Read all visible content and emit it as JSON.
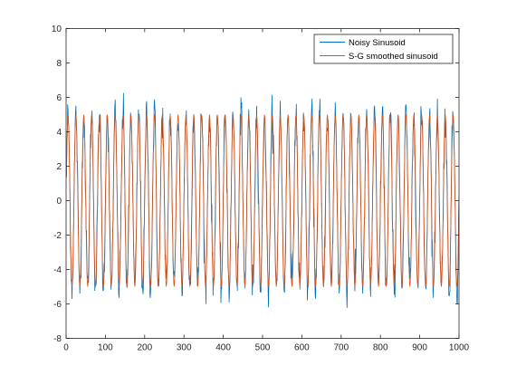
{
  "chart_data": {
    "type": "line",
    "title": "",
    "xlabel": "",
    "ylabel": "",
    "xlim": [
      0,
      1000
    ],
    "ylim": [
      -8,
      10
    ],
    "x_ticks": [
      0,
      100,
      200,
      300,
      400,
      500,
      600,
      700,
      800,
      900,
      1000
    ],
    "y_ticks": [
      -8,
      -6,
      -4,
      -2,
      0,
      2,
      4,
      6,
      8,
      10
    ],
    "x_tick_labels": [
      "0",
      "100",
      "200",
      "300",
      "400",
      "500",
      "600",
      "700",
      "800",
      "900",
      "1000"
    ],
    "y_tick_labels": [
      "-8",
      "-6",
      "-4",
      "-2",
      "0",
      "2",
      "4",
      "6",
      "8",
      "10"
    ],
    "grid": false,
    "legend_position": "top-right",
    "x": {
      "start": 1,
      "end": 1000,
      "step": 1
    },
    "series": [
      {
        "name": "Noisy Sinusoid",
        "color": "#0072BD",
        "amplitude": 5,
        "period": 20,
        "noise_std": 0.6
      },
      {
        "name": "S-G smoothed sinusoid",
        "color": "#D95319",
        "amplitude": 5,
        "period": 20,
        "noise_std": 0
      }
    ]
  }
}
